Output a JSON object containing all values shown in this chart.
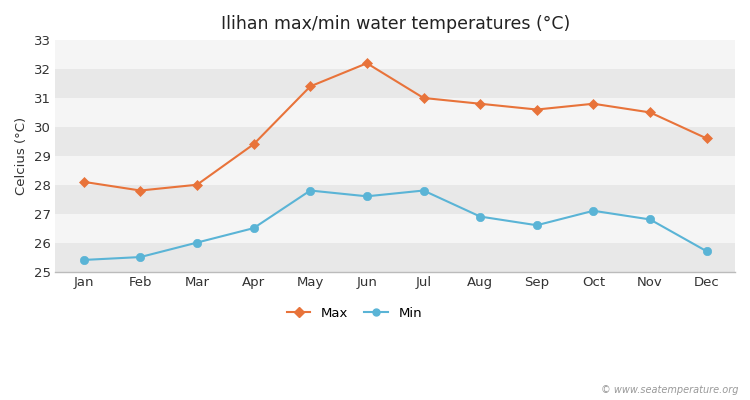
{
  "title": "Ilihan max/min water temperatures (°C)",
  "ylabel": "Celcius (°C)",
  "months": [
    "Jan",
    "Feb",
    "Mar",
    "Apr",
    "May",
    "Jun",
    "Jul",
    "Aug",
    "Sep",
    "Oct",
    "Nov",
    "Dec"
  ],
  "max_temps": [
    28.1,
    27.8,
    28.0,
    29.4,
    31.4,
    32.2,
    31.0,
    30.8,
    30.6,
    30.8,
    30.5,
    29.6
  ],
  "min_temps": [
    25.4,
    25.5,
    26.0,
    26.5,
    27.8,
    27.6,
    27.8,
    26.9,
    26.6,
    27.1,
    26.8,
    25.7
  ],
  "max_color": "#e8733a",
  "min_color": "#5ab4d6",
  "bg_color": "#ffffff",
  "plot_bg_color": "#f0f0f0",
  "band_color_light": "#f5f5f5",
  "band_color_dark": "#e8e8e8",
  "ylim": [
    25,
    33
  ],
  "yticks": [
    25,
    26,
    27,
    28,
    29,
    30,
    31,
    32,
    33
  ],
  "watermark": "© www.seatemperature.org",
  "legend_max": "Max",
  "legend_min": "Min"
}
